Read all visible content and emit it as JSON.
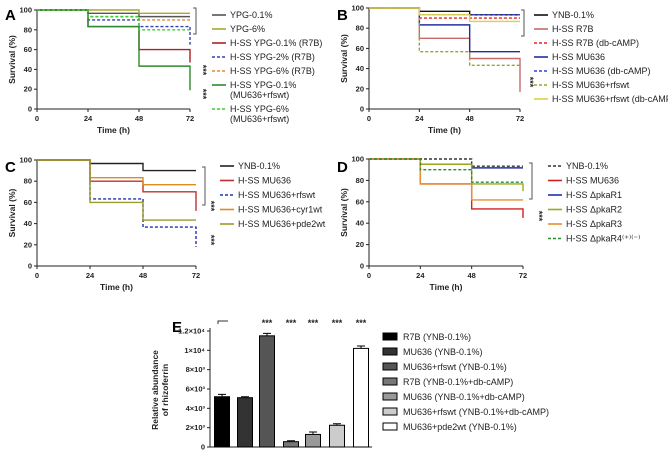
{
  "chart_data": [
    {
      "panel": "A",
      "type": "line",
      "subtype": "kaplan-meier step",
      "xlabel": "Time (h)",
      "ylabel": "Survival (%)",
      "xticks": [
        0,
        24,
        48,
        72
      ],
      "yticks": [
        0,
        20,
        40,
        60,
        80,
        100
      ],
      "xlim": [
        0,
        72
      ],
      "ylim": [
        0,
        100
      ],
      "x": [
        0,
        24,
        48,
        72
      ],
      "series": [
        {
          "name": "YPG-0.1%",
          "color": "#555555",
          "dash": false,
          "values": [
            100,
            96.7,
            93.3,
            93.3
          ]
        },
        {
          "name": "YPG-6%",
          "color": "#a8a82a",
          "dash": false,
          "values": [
            100,
            100,
            96.7,
            96.7
          ]
        },
        {
          "name": "H-SS YPG-0.1% (R7B)",
          "color": "#b02020",
          "dash": false,
          "values": [
            100,
            83.3,
            60,
            60
          ],
          "end": 47
        },
        {
          "name": "H-SS YPG-2% (R7B)",
          "color": "#3040b0",
          "dash": true,
          "values": [
            100,
            90,
            83.3,
            83.3
          ],
          "end": 65
        },
        {
          "name": "H-SS YPG-6% (R7B)",
          "color": "#e08a30",
          "dash": true,
          "values": [
            100,
            93.3,
            90,
            90
          ]
        },
        {
          "name": "H-SS YPG-0.1% (MU636+rfswt)",
          "color": "#2e8a2e",
          "dash": false,
          "values": [
            100,
            83.3,
            43.3,
            43.3
          ],
          "end": 19
        },
        {
          "name": "H-SS YPG-6% (MU636+rfswt)",
          "color": "#3ecb3e",
          "dash": true,
          "values": [
            100,
            93.3,
            80,
            80
          ]
        }
      ],
      "legend_lines": [
        [
          "YPG-0.1%"
        ],
        [
          "YPG-6%"
        ],
        [
          "H-SS YPG-0.1% (R7B)"
        ],
        [
          "H-SS YPG-2% (R7B)"
        ],
        [
          "H-SS YPG-6% (R7B)"
        ],
        [
          "H-SS YPG-0.1%",
          "(MU636+rfswt)"
        ],
        [
          "H-SS YPG-6%",
          "(MU636+rfswt)"
        ]
      ],
      "significance": [
        "***",
        "***"
      ]
    },
    {
      "panel": "B",
      "type": "line",
      "subtype": "kaplan-meier step",
      "xlabel": "Time (h)",
      "ylabel": "Survival (%)",
      "xticks": [
        0,
        24,
        48,
        72
      ],
      "yticks": [
        0,
        20,
        40,
        60,
        80,
        100
      ],
      "xlim": [
        0,
        72
      ],
      "ylim": [
        0,
        100
      ],
      "x": [
        0,
        24,
        48,
        72
      ],
      "series": [
        {
          "name": "YNB-0.1%",
          "color": "#111111",
          "dash": false,
          "values": [
            100,
            96.7,
            93.3,
            93.3
          ]
        },
        {
          "name": "H-SS R7B",
          "color": "#c86a6a",
          "dash": false,
          "values": [
            100,
            70,
            50,
            50
          ],
          "end": 17
        },
        {
          "name": "H-SS R7B (db-cAMP)",
          "color": "#e82020",
          "dash": true,
          "values": [
            100,
            90,
            90,
            90
          ]
        },
        {
          "name": "H-SS MU636",
          "color": "#2030a0",
          "dash": false,
          "values": [
            100,
            83.3,
            56.7,
            56.7
          ]
        },
        {
          "name": "H-SS MU636 (db-cAMP)",
          "color": "#3040e0",
          "dash": true,
          "values": [
            100,
            93.3,
            93.3,
            93.3
          ]
        },
        {
          "name": "H-SS MU636+rfswt",
          "color": "#a0a030",
          "dash": true,
          "values": [
            100,
            56.7,
            43.3,
            43.3
          ]
        },
        {
          "name": "H-SS MU636+rfswt (db-cAMP)",
          "color": "#e0d040",
          "dash": false,
          "values": [
            100,
            93.3,
            86.7,
            86.7
          ]
        }
      ],
      "legend_lines": [
        [
          "YNB-0.1%"
        ],
        [
          "H-SS R7B"
        ],
        [
          "H-SS R7B (db-cAMP)"
        ],
        [
          "H-SS MU636"
        ],
        [
          "H-SS MU636 (db-cAMP)"
        ],
        [
          "H-SS MU636+rfswt"
        ],
        [
          "H-SS MU636+rfswt (db-cAMP)"
        ]
      ],
      "significance": [
        "***"
      ]
    },
    {
      "panel": "C",
      "type": "line",
      "subtype": "kaplan-meier step",
      "xlabel": "Time (h)",
      "ylabel": "Survival (%)",
      "xticks": [
        0,
        24,
        48,
        72
      ],
      "yticks": [
        0,
        20,
        40,
        60,
        80,
        100
      ],
      "xlim": [
        0,
        72
      ],
      "ylim": [
        0,
        100
      ],
      "x": [
        0,
        24,
        48,
        72
      ],
      "series": [
        {
          "name": "YNB-0.1%",
          "color": "#222222",
          "dash": false,
          "values": [
            100,
            96.7,
            90,
            90
          ]
        },
        {
          "name": "H-SS MU636",
          "color": "#c03030",
          "dash": false,
          "values": [
            100,
            80,
            70,
            70
          ],
          "end": 52
        },
        {
          "name": "H-SS MU636+rfswt",
          "color": "#2030b0",
          "dash": true,
          "values": [
            100,
            63.3,
            36.7,
            36.7
          ],
          "end": 18
        },
        {
          "name": "H-SS MU636+cyr1wt",
          "color": "#e08a20",
          "dash": false,
          "values": [
            100,
            83.3,
            76.7,
            76.7
          ]
        },
        {
          "name": "H-SS MU636+pde2wt",
          "color": "#9a9a30",
          "dash": false,
          "values": [
            100,
            60,
            43.3,
            43.3
          ]
        }
      ],
      "legend_lines": [
        [
          "YNB-0.1%"
        ],
        [
          "H-SS MU636"
        ],
        [
          "H-SS MU636+rfswt"
        ],
        [
          "H-SS MU636+cyr1wt"
        ],
        [
          "H-SS MU636+pde2wt"
        ]
      ],
      "significance": [
        "***",
        "***"
      ]
    },
    {
      "panel": "D",
      "type": "line",
      "subtype": "kaplan-meier step",
      "xlabel": "Time (h)",
      "ylabel": "Survival (%)",
      "xticks": [
        0,
        24,
        48,
        72
      ],
      "yticks": [
        0,
        20,
        40,
        60,
        80,
        100
      ],
      "xlim": [
        0,
        72
      ],
      "ylim": [
        0,
        100
      ],
      "x": [
        0,
        24,
        48,
        72
      ],
      "series": [
        {
          "name": "YNB-0.1%",
          "color": "#333333",
          "dash": true,
          "values": [
            100,
            100,
            93.3,
            93.3
          ]
        },
        {
          "name": "H-SS MU636",
          "color": "#d02020",
          "dash": false,
          "values": [
            100,
            76.7,
            53.3,
            53.3
          ],
          "end": 45
        },
        {
          "name": "H-SS ΔpkaR1",
          "color": "#2030b0",
          "dash": false,
          "values": [
            100,
            95,
            91.7,
            91.7
          ]
        },
        {
          "name": "H-SS ΔpkaR2",
          "color": "#9aaa20",
          "dash": false,
          "values": [
            100,
            95,
            76.7,
            76.7
          ],
          "end": 70
        },
        {
          "name": "H-SS ΔpkaR3",
          "color": "#e89030",
          "dash": false,
          "values": [
            100,
            76.7,
            61.7,
            61.7
          ]
        },
        {
          "name": "H-SS ΔpkaR4(+)/(-)",
          "color": "#2e8a2e",
          "dash": true,
          "values": [
            100,
            90,
            78.3,
            78.3
          ]
        }
      ],
      "legend_lines": [
        [
          "YNB-0.1%"
        ],
        [
          "H-SS MU636"
        ],
        [
          "H-SS ΔpkaR1"
        ],
        [
          "H-SS ΔpkaR2"
        ],
        [
          "H-SS ΔpkaR3"
        ],
        [
          "H-SS ΔpkaR4⁽⁺⁾⁽⁻⁾"
        ]
      ],
      "significance": [
        "***"
      ]
    },
    {
      "panel": "E",
      "type": "bar",
      "xlabel": "",
      "ylabel": [
        "Relative abundance",
        "of rhizoferrin"
      ],
      "ylim": [
        0,
        12000
      ],
      "yticks": [
        0,
        2000,
        4000,
        6000,
        8000,
        10000,
        12000
      ],
      "ytick_labels": [
        "0",
        "2×10³",
        "4×10³",
        "6×10³",
        "8×10³",
        "1×10⁴",
        "1.2×10⁴"
      ],
      "categories": [
        "R7B (YNB-0.1%)",
        "MU636 (YNB-0.1%)",
        "MU636+rfswt (YNB-0.1%)",
        "R7B (YNB-0.1%+db-cAMP)",
        "MU636 (YNB-0.1%+db-cAMP)",
        "MU636+rfswt (YNB-0.1%+db-cAMP)",
        "MU636+pde2wt (YNB-0.1%)"
      ],
      "values": [
        5200,
        5100,
        11500,
        550,
        1300,
        2250,
        10200
      ],
      "errors": [
        250,
        100,
        250,
        100,
        250,
        150,
        250
      ],
      "colors": [
        "#000000",
        "#333333",
        "#555555",
        "#777777",
        "#999999",
        "#cccccc",
        "#ffffff"
      ],
      "significance": [
        "",
        "",
        "***",
        "***",
        "***",
        "***",
        "***"
      ],
      "legend": "right"
    }
  ]
}
